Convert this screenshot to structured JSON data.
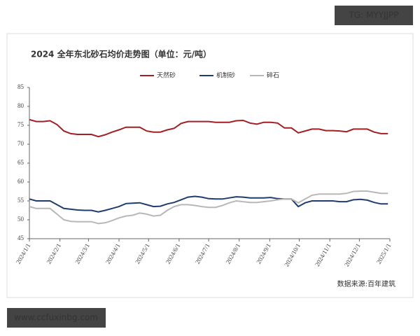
{
  "chart_data": {
    "type": "line",
    "title": "2024 全年东北砂石均价走势图（单位：元/吨）",
    "source": "数据来源:百年建筑",
    "x": [
      "2024/1/1",
      "2024/1/8",
      "2024/1/15",
      "2024/1/22",
      "2024/1/29",
      "2024/2/5",
      "2024/2/12",
      "2024/2/19",
      "2024/2/26",
      "2024/3/4",
      "2024/3/11",
      "2024/3/18",
      "2024/3/25",
      "2024/4/1",
      "2024/4/8",
      "2024/4/15",
      "2024/4/22",
      "2024/4/29",
      "2024/5/6",
      "2024/5/13",
      "2024/5/20",
      "2024/5/27",
      "2024/6/3",
      "2024/6/10",
      "2024/6/17",
      "2024/6/24",
      "2024/7/1",
      "2024/7/8",
      "2024/7/15",
      "2024/7/22",
      "2024/7/29",
      "2024/8/5",
      "2024/8/12",
      "2024/8/19",
      "2024/8/26",
      "2024/9/2",
      "2024/9/9",
      "2024/9/16",
      "2024/9/23",
      "2024/9/30",
      "2024/10/7",
      "2024/10/14",
      "2024/10/21",
      "2024/10/28",
      "2024/11/4",
      "2024/11/11",
      "2024/11/18",
      "2024/11/25",
      "2024/12/2",
      "2024/12/9",
      "2024/12/16",
      "2024/12/23",
      "2024/12/30"
    ],
    "series": [
      {
        "name": "天然砂",
        "color": "#a31f24",
        "values": [
          76.5,
          76,
          76,
          76.2,
          75.2,
          73.5,
          72.8,
          72.6,
          72.6,
          72.6,
          72,
          72.5,
          73.2,
          73.8,
          74.5,
          74.5,
          74.5,
          73.5,
          73.2,
          73.2,
          73.8,
          74.2,
          75.5,
          76,
          76,
          76,
          76,
          75.8,
          75.8,
          75.8,
          76.2,
          76.3,
          75.6,
          75.3,
          75.8,
          75.8,
          75.6,
          74.3,
          74.3,
          73,
          73.5,
          74,
          74,
          73.6,
          73.6,
          73.5,
          73.3,
          74,
          74,
          74,
          73.2,
          72.8,
          72.8
        ]
      },
      {
        "name": "机制砂",
        "color": "#1f3c6e",
        "values": [
          55.5,
          55,
          55,
          55,
          54,
          53,
          52.8,
          52.6,
          52.5,
          52.5,
          52.1,
          52.5,
          53,
          53.5,
          54.3,
          54.4,
          54.5,
          54,
          53.5,
          53.6,
          54.2,
          54.6,
          55.3,
          56,
          56.2,
          56,
          55.6,
          55.5,
          55.5,
          55.8,
          56.1,
          56,
          55.8,
          55.8,
          55.8,
          55.9,
          55.6,
          55.5,
          55.5,
          53.5,
          54.5,
          55,
          55,
          55,
          55,
          54.8,
          54.8,
          55.3,
          55.4,
          55.2,
          54.6,
          54.2,
          54.2
        ]
      },
      {
        "name": "碎石",
        "color": "#b8b8b8",
        "values": [
          53.5,
          53,
          53,
          53,
          51.5,
          50,
          49.6,
          49.5,
          49.5,
          49.5,
          49,
          49.2,
          49.8,
          50.5,
          51,
          51.2,
          51.8,
          51.5,
          51,
          51.2,
          52.5,
          53.5,
          54,
          54,
          53.8,
          53.5,
          53.3,
          53.3,
          53.8,
          54.5,
          55,
          54.8,
          54.6,
          54.6,
          54.8,
          55,
          55.3,
          55.5,
          55.5,
          54.5,
          55.5,
          56.5,
          56.8,
          56.8,
          56.8,
          56.8,
          57,
          57.5,
          57.6,
          57.6,
          57.3,
          57,
          57
        ]
      }
    ],
    "xlim": [
      "2024/1/1",
      "2025/1/1"
    ],
    "xticks": [
      "2024/1/1",
      "2024/2/1",
      "2024/3/1",
      "2024/4/1",
      "2024/5/1",
      "2024/6/1",
      "2024/7/1",
      "2024/8/1",
      "2024/9/1",
      "2024/10/1",
      "2024/11/1",
      "2024/12/1",
      "2025/1/1"
    ],
    "ylim": [
      45,
      85
    ],
    "yticks": [
      45,
      50,
      55,
      60,
      65,
      70,
      75,
      80,
      85
    ],
    "grid": false,
    "legend": "top"
  },
  "overlay": {
    "top_right": "TG: MYYJJPP",
    "bottom_left": "www.ccfuxinbg.com"
  }
}
